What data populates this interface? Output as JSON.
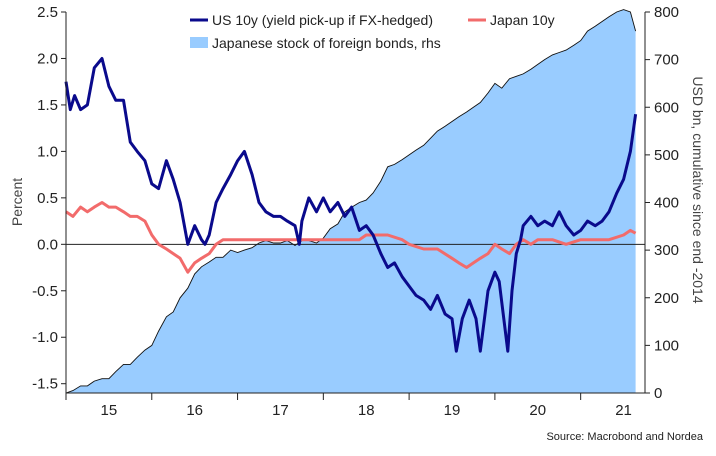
{
  "chart_data": {
    "type": "line",
    "ylabel": "Percent",
    "ylabel_right": "USD bn, cumulative since end -2014",
    "ylim": [
      -1.6,
      2.5
    ],
    "ylim_right": [
      0,
      800
    ],
    "y_ticks": [
      "2.5",
      "2.0",
      "1.5",
      "1.0",
      "0.5",
      "0.0",
      "-0.5",
      "-1.0",
      "-1.5"
    ],
    "y_tick_values": [
      2.5,
      2.0,
      1.5,
      1.0,
      0.5,
      0.0,
      -0.5,
      -1.0,
      -1.5
    ],
    "y_ticks_right": [
      "800",
      "700",
      "600",
      "500",
      "400",
      "300",
      "200",
      "100",
      "0"
    ],
    "y_tick_values_right": [
      800,
      700,
      600,
      500,
      400,
      300,
      200,
      100,
      0
    ],
    "x_ticks": [
      "15",
      "16",
      "17",
      "18",
      "19",
      "20",
      "21"
    ],
    "x_tick_values": [
      2015.5,
      2016.5,
      2017.5,
      2018.5,
      2019.5,
      2020.5,
      2021.5
    ],
    "xlim": [
      2015.0,
      2021.75
    ],
    "legend_placement": "top-center",
    "source": "Source: Macrobond and Nordea",
    "colors": {
      "us": "#0a0a8c",
      "japan": "#f26b6b",
      "stock": "#99ccff"
    },
    "series": [
      {
        "name": "US 10y (yield pick-up if FX-hedged)",
        "axis": "left",
        "kind": "line",
        "x": [
          2015.0,
          2015.05,
          2015.1,
          2015.17,
          2015.25,
          2015.33,
          2015.42,
          2015.5,
          2015.58,
          2015.67,
          2015.75,
          2015.83,
          2015.92,
          2016.0,
          2016.08,
          2016.17,
          2016.25,
          2016.33,
          2016.42,
          2016.5,
          2016.58,
          2016.62,
          2016.67,
          2016.75,
          2016.83,
          2016.92,
          2017.0,
          2017.08,
          2017.17,
          2017.25,
          2017.33,
          2017.42,
          2017.5,
          2017.58,
          2017.67,
          2017.72,
          2017.75,
          2017.83,
          2017.92,
          2018.0,
          2018.08,
          2018.17,
          2018.25,
          2018.33,
          2018.42,
          2018.5,
          2018.58,
          2018.67,
          2018.75,
          2018.83,
          2018.92,
          2019.0,
          2019.08,
          2019.17,
          2019.25,
          2019.33,
          2019.42,
          2019.5,
          2019.55,
          2019.62,
          2019.7,
          2019.78,
          2019.83,
          2019.92,
          2020.0,
          2020.05,
          2020.15,
          2020.2,
          2020.25,
          2020.3,
          2020.33,
          2020.42,
          2020.5,
          2020.58,
          2020.67,
          2020.75,
          2020.83,
          2020.92,
          2021.0,
          2021.08,
          2021.17,
          2021.25,
          2021.33,
          2021.42,
          2021.5,
          2021.58,
          2021.64
        ],
        "values": [
          1.75,
          1.45,
          1.6,
          1.45,
          1.5,
          1.9,
          2.0,
          1.7,
          1.55,
          1.55,
          1.1,
          1.0,
          0.9,
          0.65,
          0.6,
          0.9,
          0.7,
          0.45,
          0.0,
          0.2,
          0.05,
          0.0,
          0.1,
          0.45,
          0.6,
          0.75,
          0.9,
          1.0,
          0.75,
          0.45,
          0.35,
          0.3,
          0.3,
          0.25,
          0.2,
          0.0,
          0.25,
          0.5,
          0.35,
          0.5,
          0.35,
          0.45,
          0.3,
          0.4,
          0.15,
          0.2,
          0.1,
          -0.1,
          -0.25,
          -0.2,
          -0.35,
          -0.45,
          -0.55,
          -0.6,
          -0.7,
          -0.55,
          -0.75,
          -0.8,
          -1.15,
          -0.8,
          -0.6,
          -0.8,
          -1.15,
          -0.5,
          -0.3,
          -0.4,
          -1.15,
          -0.5,
          -0.1,
          0.05,
          0.2,
          0.3,
          0.2,
          0.25,
          0.2,
          0.35,
          0.2,
          0.1,
          0.15,
          0.25,
          0.2,
          0.25,
          0.35,
          0.55,
          0.7,
          1.0,
          1.4
        ]
      },
      {
        "name": "Japan 10y",
        "axis": "left",
        "kind": "line",
        "x": [
          2015.0,
          2015.08,
          2015.17,
          2015.25,
          2015.33,
          2015.42,
          2015.5,
          2015.58,
          2015.67,
          2015.75,
          2015.83,
          2015.92,
          2016.0,
          2016.08,
          2016.17,
          2016.25,
          2016.33,
          2016.42,
          2016.5,
          2016.58,
          2016.67,
          2016.75,
          2016.83,
          2016.92,
          2017.0,
          2017.25,
          2017.5,
          2017.75,
          2018.0,
          2018.25,
          2018.42,
          2018.5,
          2018.58,
          2018.75,
          2018.92,
          2019.0,
          2019.17,
          2019.33,
          2019.5,
          2019.58,
          2019.67,
          2019.75,
          2019.83,
          2019.92,
          2020.0,
          2020.08,
          2020.17,
          2020.25,
          2020.33,
          2020.42,
          2020.5,
          2020.67,
          2020.83,
          2021.0,
          2021.17,
          2021.33,
          2021.5,
          2021.58,
          2021.64
        ],
        "values": [
          0.35,
          0.3,
          0.4,
          0.35,
          0.4,
          0.45,
          0.4,
          0.4,
          0.35,
          0.3,
          0.3,
          0.25,
          0.1,
          0.0,
          -0.05,
          -0.1,
          -0.15,
          -0.3,
          -0.2,
          -0.15,
          -0.1,
          0.0,
          0.05,
          0.05,
          0.05,
          0.05,
          0.05,
          0.05,
          0.05,
          0.05,
          0.05,
          0.1,
          0.1,
          0.1,
          0.05,
          0.0,
          -0.05,
          -0.05,
          -0.15,
          -0.2,
          -0.25,
          -0.2,
          -0.15,
          -0.1,
          0.0,
          -0.05,
          -0.1,
          0.0,
          0.05,
          0.0,
          0.05,
          0.05,
          0.0,
          0.05,
          0.05,
          0.05,
          0.1,
          0.15,
          0.12
        ]
      },
      {
        "name": "Japanese stock of foreign bonds, rhs",
        "axis": "right",
        "kind": "area",
        "x": [
          2015.0,
          2015.08,
          2015.17,
          2015.25,
          2015.33,
          2015.42,
          2015.5,
          2015.58,
          2015.67,
          2015.75,
          2015.83,
          2015.92,
          2016.0,
          2016.08,
          2016.17,
          2016.25,
          2016.33,
          2016.42,
          2016.5,
          2016.58,
          2016.67,
          2016.75,
          2016.83,
          2016.92,
          2017.0,
          2017.08,
          2017.17,
          2017.25,
          2017.33,
          2017.42,
          2017.5,
          2017.58,
          2017.67,
          2017.75,
          2017.83,
          2017.92,
          2018.0,
          2018.08,
          2018.17,
          2018.25,
          2018.33,
          2018.42,
          2018.5,
          2018.58,
          2018.67,
          2018.75,
          2018.83,
          2018.92,
          2019.0,
          2019.08,
          2019.17,
          2019.25,
          2019.33,
          2019.42,
          2019.5,
          2019.58,
          2019.67,
          2019.75,
          2019.83,
          2019.92,
          2020.0,
          2020.08,
          2020.17,
          2020.25,
          2020.33,
          2020.42,
          2020.5,
          2020.58,
          2020.67,
          2020.75,
          2020.83,
          2020.92,
          2021.0,
          2021.08,
          2021.17,
          2021.25,
          2021.33,
          2021.42,
          2021.5,
          2021.58,
          2021.64
        ],
        "values": [
          0,
          5,
          15,
          15,
          25,
          30,
          30,
          45,
          60,
          60,
          75,
          90,
          100,
          130,
          160,
          170,
          200,
          220,
          250,
          265,
          275,
          285,
          285,
          300,
          295,
          300,
          305,
          315,
          320,
          315,
          315,
          320,
          310,
          320,
          320,
          315,
          325,
          345,
          355,
          380,
          390,
          400,
          405,
          420,
          445,
          475,
          480,
          490,
          500,
          510,
          520,
          535,
          550,
          560,
          570,
          580,
          590,
          600,
          610,
          630,
          650,
          640,
          660,
          665,
          670,
          680,
          690,
          700,
          710,
          715,
          720,
          730,
          740,
          760,
          770,
          780,
          790,
          800,
          805,
          800,
          760
        ]
      }
    ]
  }
}
